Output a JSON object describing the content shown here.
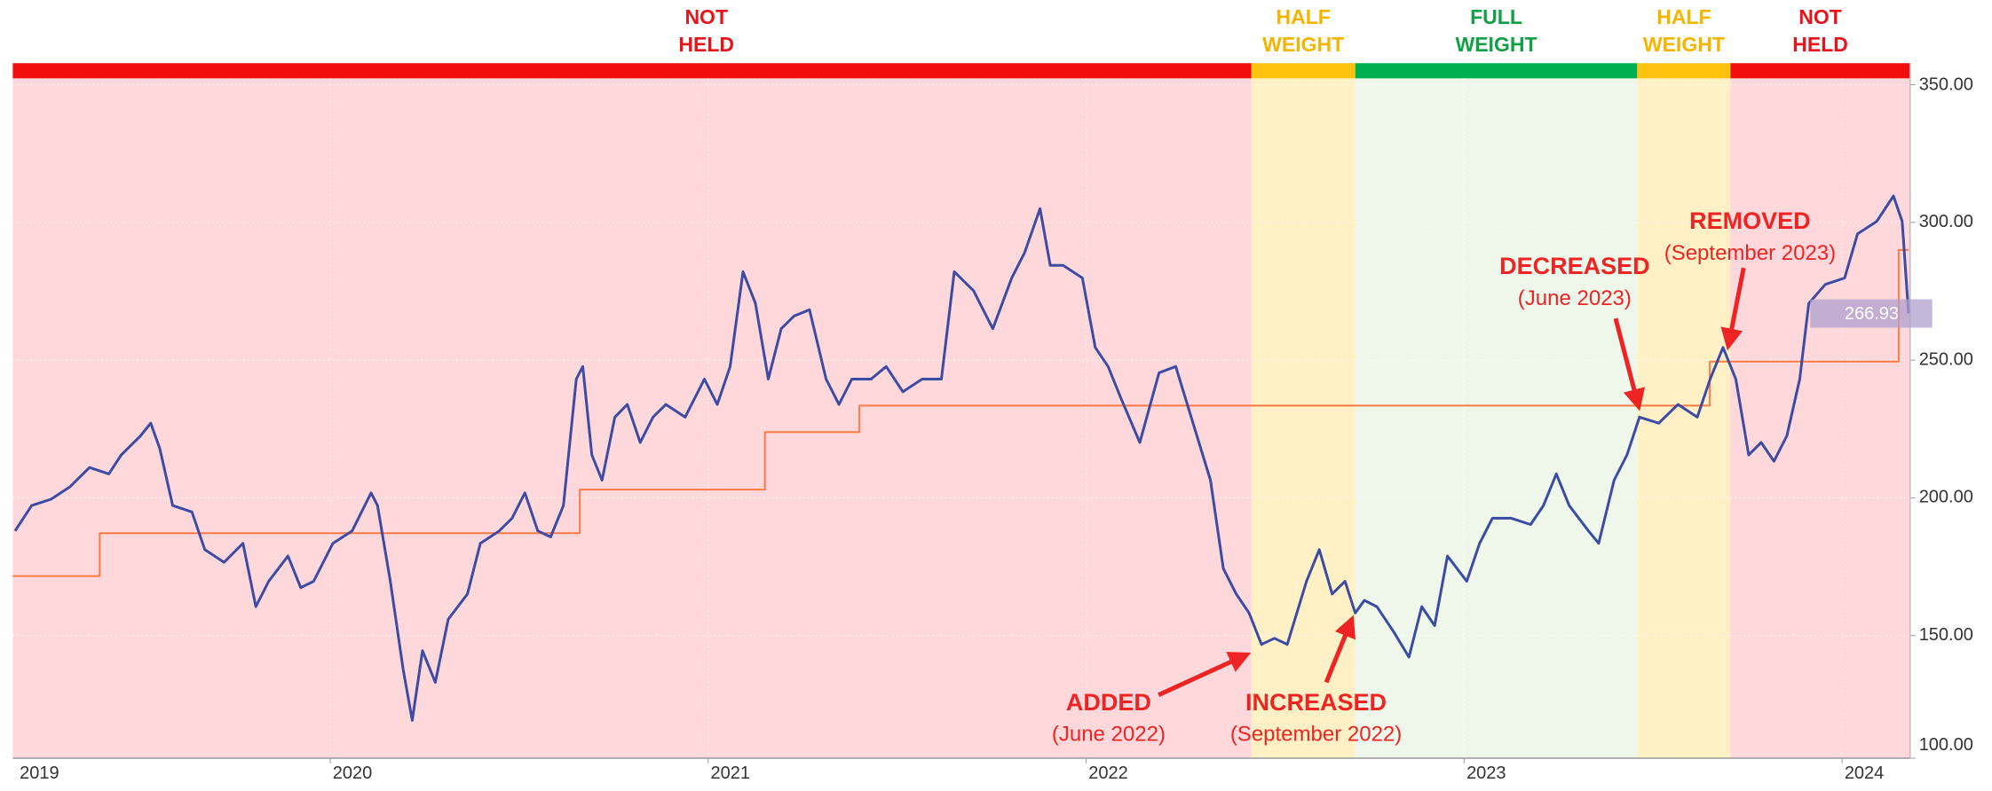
{
  "chart_data": {
    "type": "line",
    "xlim": [
      2019.16,
      2024.18
    ],
    "xticks": [
      2019,
      2020,
      2021,
      2022,
      2023,
      2024
    ],
    "ylim": [
      105.5,
      352.3
    ],
    "yticks": [
      {
        "value": 100,
        "label": "100.00"
      },
      {
        "value": 150,
        "label": "150.00"
      },
      {
        "value": 200,
        "label": "200.00"
      },
      {
        "value": 250,
        "label": "250.00"
      },
      {
        "value": 300,
        "label": "300.00"
      },
      {
        "value": 350,
        "label": "350.00"
      }
    ],
    "grid": true,
    "bands": [
      {
        "start": 2019.16,
        "end": 2022.437,
        "label": [
          "NOT",
          "HELD"
        ],
        "color": "#f20d0d",
        "background": "#ffd8dc",
        "text_color": "#e8141c"
      },
      {
        "start": 2022.437,
        "end": 2022.712,
        "label": [
          "HALF",
          "WEIGHT"
        ],
        "color": "#ffc20e",
        "background": "#fff0c6",
        "text_color": "#f5b400"
      },
      {
        "start": 2022.712,
        "end": 2023.458,
        "label": [
          "FULL",
          "WEIGHT"
        ],
        "color": "#00b050",
        "background": "#eef7ea",
        "text_color": "#12a045"
      },
      {
        "start": 2023.458,
        "end": 2023.705,
        "label": [
          "HALF",
          "WEIGHT"
        ],
        "color": "#ffc20e",
        "background": "#fff0c6",
        "text_color": "#f5b400"
      },
      {
        "start": 2023.705,
        "end": 2024.18,
        "label": [
          "NOT",
          "HELD"
        ],
        "color": "#f20d0d",
        "background": "#ffd8dc",
        "text_color": "#e8141c"
      }
    ],
    "series": [
      {
        "color": "#ff7a45",
        "x": [
          2019.16,
          2019.39,
          2019.39,
          2020.66,
          2020.66,
          2021.15,
          2021.15,
          2021.4,
          2021.4,
          2023.65,
          2023.65,
          2024.15,
          2024.15,
          2024.176
        ],
        "values": [
          171.6,
          171.6,
          187.2,
          187.2,
          203.0,
          203.0,
          223.9,
          223.9,
          233.5,
          233.5,
          249.5,
          249.5,
          290.0,
          290.0
        ]
      },
      {
        "color": "#3c4ba3",
        "x": [
          2019.166,
          2019.21,
          2019.261,
          2019.312,
          2019.363,
          2019.414,
          2019.447,
          2019.498,
          2019.525,
          2019.549,
          2019.583,
          2019.634,
          2019.668,
          2019.719,
          2019.769,
          2019.803,
          2019.837,
          2019.888,
          2019.922,
          2019.956,
          2020.007,
          2020.058,
          2020.108,
          2020.125,
          2020.159,
          2020.193,
          2020.217,
          2020.244,
          2020.278,
          2020.312,
          2020.363,
          2020.397,
          2020.447,
          2020.481,
          2020.515,
          2020.549,
          2020.583,
          2020.617,
          2020.651,
          2020.668,
          2020.692,
          2020.719,
          2020.753,
          2020.786,
          2020.82,
          2020.854,
          2020.888,
          2020.939,
          2020.99,
          2021.024,
          2021.058,
          2021.092,
          2021.125,
          2021.159,
          2021.193,
          2021.227,
          2021.268,
          2021.312,
          2021.346,
          2021.38,
          2021.431,
          2021.471,
          2021.515,
          2021.566,
          2021.617,
          2021.651,
          2021.702,
          2021.753,
          2021.803,
          2021.837,
          2021.878,
          2021.905,
          2021.939,
          2021.99,
          2022.024,
          2022.058,
          2022.092,
          2022.142,
          2022.193,
          2022.237,
          2022.278,
          2022.329,
          2022.363,
          2022.397,
          2022.431,
          2022.464,
          2022.498,
          2022.532,
          2022.583,
          2022.617,
          2022.651,
          2022.685,
          2022.712,
          2022.736,
          2022.769,
          2022.814,
          2022.854,
          2022.888,
          2022.922,
          2022.956,
          2023.007,
          2023.041,
          2023.075,
          2023.125,
          2023.176,
          2023.21,
          2023.244,
          2023.278,
          2023.329,
          2023.356,
          2023.397,
          2023.431,
          2023.464,
          2023.515,
          2023.566,
          2023.617,
          2023.651,
          2023.685,
          2023.719,
          2023.753,
          2023.786,
          2023.82,
          2023.854,
          2023.888,
          2023.912,
          2023.956,
          2024.007,
          2024.041,
          2024.092,
          2024.136,
          2024.159,
          2024.176
        ],
        "values": [
          188.0,
          197.2,
          199.5,
          204.1,
          211.0,
          208.7,
          215.6,
          222.5,
          227.1,
          217.9,
          197.2,
          194.9,
          181.2,
          176.6,
          183.5,
          160.5,
          169.7,
          178.9,
          167.4,
          169.7,
          183.5,
          188.0,
          201.8,
          197.2,
          169.7,
          137.6,
          119.2,
          144.5,
          133.0,
          155.9,
          165.1,
          183.5,
          188.0,
          192.6,
          201.8,
          188.0,
          185.8,
          197.2,
          243.1,
          247.7,
          215.6,
          206.4,
          229.3,
          233.9,
          220.1,
          229.3,
          233.9,
          229.3,
          243.1,
          233.9,
          247.7,
          282.1,
          270.6,
          243.1,
          261.4,
          266.0,
          268.3,
          243.1,
          233.9,
          243.1,
          243.1,
          247.7,
          238.5,
          243.1,
          243.1,
          282.1,
          275.2,
          261.4,
          279.8,
          289.0,
          305.0,
          284.4,
          284.4,
          279.8,
          254.6,
          247.7,
          236.2,
          220.1,
          245.4,
          247.7,
          229.3,
          206.4,
          174.3,
          165.1,
          158.2,
          146.8,
          149.0,
          146.8,
          169.7,
          181.2,
          165.1,
          169.7,
          158.2,
          162.8,
          160.5,
          151.3,
          142.2,
          160.5,
          153.6,
          178.9,
          169.7,
          183.5,
          192.6,
          192.6,
          190.3,
          197.2,
          208.7,
          197.2,
          188.0,
          183.5,
          206.4,
          215.6,
          229.3,
          227.1,
          233.9,
          229.3,
          243.1,
          254.6,
          243.1,
          215.6,
          220.1,
          213.3,
          222.5,
          243.1,
          270.6,
          277.5,
          279.8,
          295.8,
          300.4,
          309.6,
          300.4,
          266.93
        ]
      }
    ],
    "annotations": [
      {
        "label": "ADDED",
        "note": "(June 2022)"
      },
      {
        "label": "INCREASED",
        "note": "(September 2022)"
      },
      {
        "label": "DECREASED",
        "note": "(June 2023)"
      },
      {
        "label": "REMOVED",
        "note": "(September 2023)"
      }
    ]
  }
}
